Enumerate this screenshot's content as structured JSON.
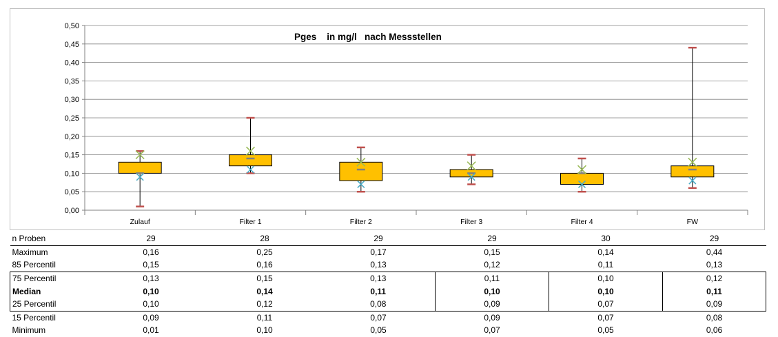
{
  "chart_data": {
    "type": "boxplot",
    "title": "Pges    in mg/l   nach Messstellen",
    "ylim": [
      0,
      0.5
    ],
    "y_ticks": [
      "0,00",
      "0,05",
      "0,10",
      "0,15",
      "0,20",
      "0,25",
      "0,30",
      "0,35",
      "0,40",
      "0,45",
      "0,50"
    ],
    "categories": [
      "Zulauf",
      "Filter 1",
      "Filter 2",
      "Filter 3",
      "Filter 4",
      "FW"
    ],
    "minimum": [
      0.01,
      0.1,
      0.05,
      0.07,
      0.05,
      0.06
    ],
    "p15": [
      0.09,
      0.11,
      0.07,
      0.09,
      0.07,
      0.08
    ],
    "p25": [
      0.1,
      0.12,
      0.08,
      0.09,
      0.07,
      0.09
    ],
    "median": [
      0.1,
      0.14,
      0.11,
      0.1,
      0.1,
      0.11
    ],
    "p75": [
      0.13,
      0.15,
      0.13,
      0.11,
      0.1,
      0.12
    ],
    "p85": [
      0.15,
      0.16,
      0.13,
      0.12,
      0.11,
      0.13
    ],
    "maximum": [
      0.16,
      0.25,
      0.17,
      0.15,
      0.14,
      0.44
    ],
    "colors": {
      "box_fill": "#ffc000",
      "box_stroke": "#000000",
      "median_mark": "#808080",
      "max_min_mark": "#c0504d",
      "p85_mark": "#9bbb59",
      "p15_mark": "#4bacc6",
      "gridline": "#808080"
    }
  },
  "table": {
    "header": {
      "label": "n Proben",
      "values": [
        "29",
        "28",
        "29",
        "29",
        "30",
        "29"
      ]
    },
    "rows": [
      {
        "label": "Maximum",
        "values": [
          "0,16",
          "0,25",
          "0,17",
          "0,15",
          "0,14",
          "0,44"
        ]
      },
      {
        "label": "85 Percentil",
        "values": [
          "0,15",
          "0,16",
          "0,13",
          "0,12",
          "0,11",
          "0,13"
        ]
      },
      {
        "label": "75 Percentil",
        "values": [
          "0,13",
          "0,15",
          "0,13",
          "0,11",
          "0,10",
          "0,12"
        ]
      },
      {
        "label": "Median",
        "values": [
          "0,10",
          "0,14",
          "0,11",
          "0,10",
          "0,10",
          "0,11"
        ]
      },
      {
        "label": "25 Percentil",
        "values": [
          "0,10",
          "0,12",
          "0,08",
          "0,09",
          "0,07",
          "0,09"
        ]
      },
      {
        "label": "15 Percentil",
        "values": [
          "0,09",
          "0,11",
          "0,07",
          "0,09",
          "0,07",
          "0,08"
        ]
      },
      {
        "label": "Minimum",
        "values": [
          "0,01",
          "0,10",
          "0,05",
          "0,07",
          "0,05",
          "0,06"
        ]
      }
    ]
  }
}
